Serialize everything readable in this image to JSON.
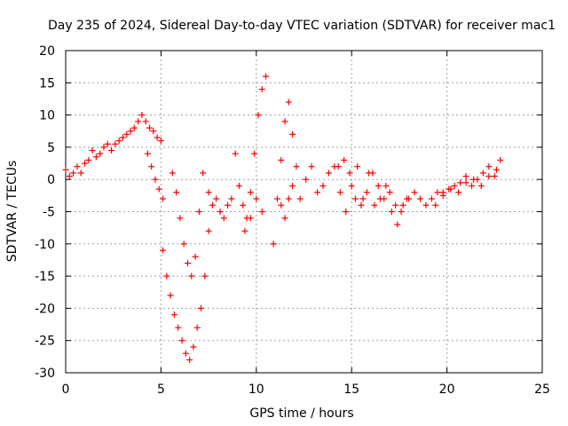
{
  "chart_data": {
    "type": "scatter",
    "title": "Day 235 of 2024, Sidereal Day-to-day VTEC variation (SDTVAR) for receiver mac1",
    "xlabel": "GPS time / hours",
    "ylabel": "SDTVAR / TECUs",
    "xlim": [
      0,
      25
    ],
    "ylim": [
      -30,
      20
    ],
    "xticks": [
      0,
      5,
      10,
      15,
      20,
      25
    ],
    "yticks": [
      20,
      15,
      10,
      5,
      0,
      -5,
      -10,
      -15,
      -20,
      -25,
      -30
    ],
    "grid": true,
    "marker": "plus",
    "color": "#ff0000",
    "series": [
      {
        "name": "SDTVAR",
        "x": [
          0.0,
          0.2,
          0.4,
          0.6,
          0.8,
          1.0,
          1.2,
          1.4,
          1.6,
          1.8,
          2.0,
          2.2,
          2.4,
          2.6,
          2.8,
          3.0,
          3.2,
          3.4,
          3.6,
          3.8,
          4.0,
          4.2,
          4.4,
          4.6,
          4.8,
          5.0,
          4.3,
          4.5,
          4.7,
          4.9,
          5.1,
          5.1,
          5.3,
          5.5,
          5.7,
          5.9,
          6.1,
          6.3,
          6.5,
          6.7,
          6.9,
          7.1,
          7.3,
          7.5,
          5.6,
          5.8,
          6.0,
          6.2,
          6.4,
          6.6,
          6.8,
          7.0,
          7.2,
          7.5,
          7.7,
          7.9,
          8.1,
          8.3,
          8.5,
          8.7,
          8.9,
          9.1,
          9.3,
          9.5,
          9.7,
          9.9,
          10.1,
          10.3,
          10.5,
          9.4,
          9.7,
          10.0,
          10.3,
          10.9,
          11.1,
          11.3,
          11.5,
          11.7,
          11.9,
          12.1,
          11.3,
          11.5,
          11.7,
          11.9,
          12.3,
          12.6,
          12.9,
          13.2,
          13.5,
          13.8,
          14.1,
          14.4,
          14.7,
          15.0,
          15.3,
          15.6,
          15.9,
          16.2,
          16.5,
          16.8,
          17.1,
          17.4,
          17.7,
          18.0,
          14.3,
          14.6,
          14.9,
          15.2,
          15.5,
          15.8,
          16.1,
          16.4,
          16.7,
          17.0,
          17.3,
          17.6,
          17.9,
          18.3,
          18.6,
          18.9,
          19.2,
          19.5,
          19.8,
          20.1,
          20.4,
          20.7,
          21.0,
          21.3,
          21.6,
          21.9,
          22.2,
          22.5,
          22.8,
          19.4,
          19.8,
          20.2,
          20.6,
          21.0,
          21.4,
          21.8,
          22.2,
          22.6
        ],
        "y": [
          1.5,
          0.5,
          1.0,
          2.0,
          1.0,
          2.5,
          3.0,
          4.5,
          3.5,
          4.0,
          5.0,
          5.5,
          4.5,
          5.5,
          6.0,
          6.5,
          7.0,
          7.5,
          8.0,
          9.0,
          10.0,
          9.0,
          8.0,
          7.5,
          6.5,
          6.0,
          4.0,
          2.0,
          0.0,
          -1.5,
          -3.0,
          -11.0,
          -15.0,
          -18.0,
          -21.0,
          -23.0,
          -25.0,
          -27.0,
          -28.0,
          -26.0,
          -23.0,
          -20.0,
          -15.0,
          -8.0,
          1.0,
          -2.0,
          -6.0,
          -10.0,
          -13.0,
          -15.0,
          -12.0,
          -5.0,
          1.0,
          -2.0,
          -4.0,
          -3.0,
          -5.0,
          -6.0,
          -4.0,
          -3.0,
          4.0,
          -1.0,
          -4.0,
          -6.0,
          -2.0,
          4.0,
          10.0,
          14.0,
          16.0,
          -8.0,
          -6.0,
          -3.0,
          -5.0,
          -10.0,
          -3.0,
          3.0,
          9.0,
          12.0,
          7.0,
          2.0,
          -4.0,
          -6.0,
          -3.0,
          -1.0,
          -3.0,
          0.0,
          2.0,
          -2.0,
          -1.0,
          1.0,
          2.0,
          -2.0,
          -5.0,
          -1.0,
          2.0,
          -3.0,
          1.0,
          -4.0,
          -3.0,
          -1.0,
          -5.0,
          -7.0,
          -4.0,
          -3.0,
          2.0,
          3.0,
          1.0,
          -3.0,
          -4.0,
          -2.0,
          1.0,
          -1.0,
          -3.0,
          -2.0,
          -4.0,
          -5.0,
          -3.0,
          -2.0,
          -3.0,
          -4.0,
          -3.0,
          -2.0,
          -2.5,
          -1.5,
          -1.0,
          -0.5,
          0.5,
          -1.0,
          0.0,
          1.0,
          2.0,
          0.5,
          3.0,
          -4.0,
          -2.0,
          -1.5,
          -2.0,
          -0.5,
          0.0,
          -1.0,
          0.5,
          1.5
        ]
      }
    ]
  }
}
